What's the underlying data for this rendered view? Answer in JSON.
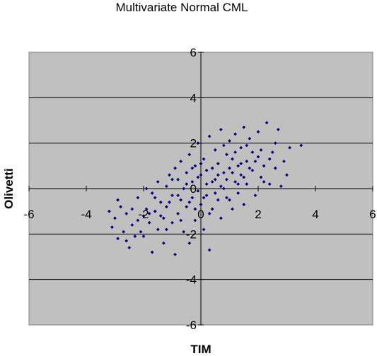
{
  "chart_data": {
    "type": "scatter",
    "title": "Multivariate Normal CML",
    "xlabel": "TIM",
    "ylabel": "Olivetti",
    "xlim": [
      -6,
      6
    ],
    "ylim": [
      -6,
      6
    ],
    "xticks": [
      -6,
      -4,
      -2,
      0,
      2,
      4,
      6
    ],
    "yticks": [
      -6,
      -4,
      -2,
      0,
      2,
      4,
      6
    ],
    "x_tick_labels": [
      "-6",
      "-4",
      "-2",
      "0",
      "2",
      "4",
      "6"
    ],
    "y_tick_labels": [
      "-6",
      "-4",
      "-2",
      "0",
      "2",
      "4",
      "6"
    ],
    "grid": "horizontal",
    "legend": "none",
    "plot_background": "#c0c0c0",
    "marker_color": "#000080",
    "series": [
      {
        "points": [
          [
            -3.2,
            -1.0
          ],
          [
            -3.1,
            -1.7
          ],
          [
            -3.0,
            -1.3
          ],
          [
            -2.9,
            -2.2
          ],
          [
            -2.8,
            -0.8
          ],
          [
            -2.6,
            -2.3
          ],
          [
            -2.6,
            -1.1
          ],
          [
            -2.5,
            -2.6
          ],
          [
            -2.4,
            -1.6
          ],
          [
            -2.3,
            -2.1
          ],
          [
            -2.2,
            -0.4
          ],
          [
            -2.1,
            -1.9
          ],
          [
            -2.0,
            -1.2
          ],
          [
            -1.9,
            -0.9
          ],
          [
            -1.8,
            -1.5
          ],
          [
            -1.7,
            -2.8
          ],
          [
            -1.7,
            -0.2
          ],
          [
            -1.6,
            -1.0
          ],
          [
            -1.5,
            -1.8
          ],
          [
            -1.5,
            0.3
          ],
          [
            -1.4,
            -0.6
          ],
          [
            -1.3,
            -2.4
          ],
          [
            -1.3,
            -1.3
          ],
          [
            -1.2,
            0.1
          ],
          [
            -1.2,
            -0.8
          ],
          [
            -1.1,
            0.6
          ],
          [
            -1.0,
            -1.5
          ],
          [
            -1.0,
            -0.3
          ],
          [
            -0.9,
            0.9
          ],
          [
            -0.9,
            -2.9
          ],
          [
            -0.8,
            -1.1
          ],
          [
            -0.8,
            0.4
          ],
          [
            -0.7,
            -0.5
          ],
          [
            -0.7,
            1.2
          ],
          [
            -0.6,
            -1.9
          ],
          [
            -0.6,
            0.0
          ],
          [
            -0.5,
            -0.8
          ],
          [
            -0.5,
            0.7
          ],
          [
            -0.4,
            -2.4
          ],
          [
            -0.4,
            1.5
          ],
          [
            -0.3,
            -0.4
          ],
          [
            -0.3,
            0.3
          ],
          [
            -0.2,
            -1.4
          ],
          [
            -0.2,
            1.0
          ],
          [
            -0.1,
            -0.1
          ],
          [
            -0.1,
            2.0
          ],
          [
            0.0,
            -0.7
          ],
          [
            0.0,
            0.6
          ],
          [
            0.1,
            -1.8
          ],
          [
            0.1,
            1.3
          ],
          [
            0.2,
            0.2
          ],
          [
            0.2,
            -0.3
          ],
          [
            0.3,
            2.3
          ],
          [
            0.3,
            -2.7
          ],
          [
            0.4,
            0.9
          ],
          [
            0.4,
            -0.9
          ],
          [
            0.5,
            1.7
          ],
          [
            0.5,
            0.4
          ],
          [
            0.6,
            -0.5
          ],
          [
            0.6,
            1.1
          ],
          [
            0.7,
            2.6
          ],
          [
            0.7,
            -1.3
          ],
          [
            0.8,
            0.7
          ],
          [
            0.8,
            0.0
          ],
          [
            0.9,
            1.5
          ],
          [
            0.9,
            -0.4
          ],
          [
            1.0,
            2.1
          ],
          [
            1.0,
            0.9
          ],
          [
            1.1,
            -0.9
          ],
          [
            1.1,
            1.3
          ],
          [
            1.2,
            0.3
          ],
          [
            1.2,
            2.4
          ],
          [
            1.3,
            1.0
          ],
          [
            1.3,
            -0.2
          ],
          [
            1.4,
            1.8
          ],
          [
            1.4,
            0.6
          ],
          [
            1.5,
            2.7
          ],
          [
            1.5,
            -0.7
          ],
          [
            1.6,
            1.2
          ],
          [
            1.6,
            0.2
          ],
          [
            1.7,
            2.2
          ],
          [
            1.8,
            0.8
          ],
          [
            1.8,
            1.6
          ],
          [
            1.9,
            -0.3
          ],
          [
            2.0,
            1.4
          ],
          [
            2.0,
            2.5
          ],
          [
            2.1,
            0.5
          ],
          [
            2.2,
            1.0
          ],
          [
            2.3,
            2.9
          ],
          [
            2.4,
            0.2
          ],
          [
            2.5,
            1.6
          ],
          [
            2.6,
            0.9
          ],
          [
            2.7,
            2.6
          ],
          [
            2.8,
            0.1
          ],
          [
            2.9,
            1.2
          ],
          [
            3.0,
            0.6
          ],
          [
            3.1,
            1.8
          ],
          [
            3.5,
            1.9
          ],
          [
            -2.9,
            -0.5
          ],
          [
            -2.7,
            -1.9
          ],
          [
            -2.4,
            -0.9
          ],
          [
            -2.2,
            -1.4
          ],
          [
            -2.0,
            -2.1
          ],
          [
            -1.9,
            0.0
          ],
          [
            -1.8,
            -1.1
          ],
          [
            -1.6,
            -0.4
          ],
          [
            -1.4,
            -1.2
          ],
          [
            -1.2,
            -1.8
          ],
          [
            -1.1,
            -0.6
          ],
          [
            -1.0,
            0.4
          ],
          [
            -0.8,
            -0.3
          ],
          [
            -0.7,
            -1.4
          ],
          [
            -0.5,
            0.2
          ],
          [
            -0.4,
            -0.6
          ],
          [
            -0.3,
            0.9
          ],
          [
            -0.2,
            -0.9
          ],
          [
            -0.1,
            0.5
          ],
          [
            0.0,
            1.1
          ],
          [
            0.1,
            -0.4
          ],
          [
            0.2,
            0.8
          ],
          [
            0.3,
            -1.1
          ],
          [
            0.4,
            0.3
          ],
          [
            0.5,
            -0.2
          ],
          [
            0.6,
            0.6
          ],
          [
            0.7,
            0.1
          ],
          [
            0.8,
            1.9
          ],
          [
            0.9,
            0.4
          ],
          [
            1.0,
            -0.5
          ],
          [
            1.1,
            0.7
          ],
          [
            1.2,
            1.6
          ],
          [
            1.3,
            0.2
          ],
          [
            1.4,
            1.1
          ],
          [
            1.5,
            0.5
          ],
          [
            1.6,
            1.9
          ],
          [
            1.7,
            0.9
          ],
          [
            1.9,
            1.2
          ],
          [
            2.1,
            1.7
          ],
          [
            2.2,
            0.3
          ],
          [
            2.4,
            1.3
          ],
          [
            2.6,
            2.0
          ]
        ]
      }
    ]
  }
}
